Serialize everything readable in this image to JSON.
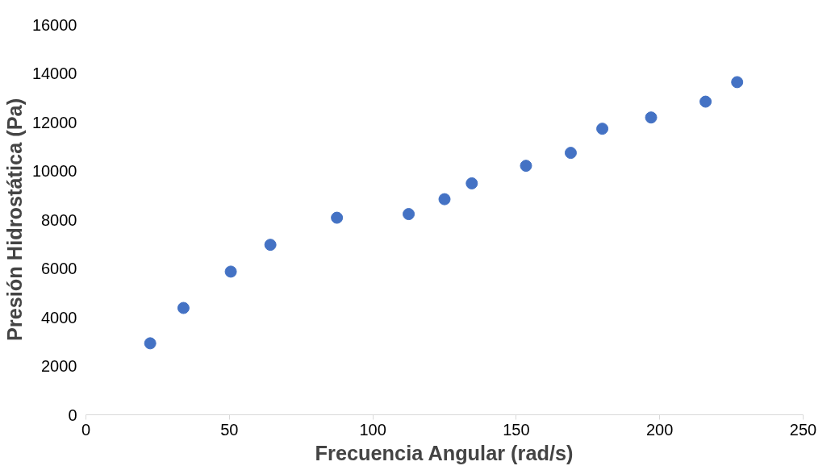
{
  "chart_data": {
    "type": "scatter",
    "xlabel": "Frecuencia Angular (rad/s)",
    "ylabel": "Presión Hidrostática (Pa)",
    "x": [
      22.4,
      34,
      50.5,
      64.3,
      87.5,
      112.5,
      125,
      134.5,
      153.4,
      169,
      180,
      197,
      216,
      227
    ],
    "values": [
      2930,
      4380,
      5870,
      6970,
      8080,
      8230,
      8840,
      9490,
      10210,
      10740,
      11730,
      12190,
      12840,
      13640
    ],
    "color": "#4472c4",
    "marker": "circle",
    "grid": false,
    "xlim": [
      0,
      250
    ],
    "xticks": [
      0,
      50,
      100,
      150,
      200,
      250
    ],
    "ylim": [
      0,
      16000
    ],
    "yticks": [
      0,
      2000,
      4000,
      6000,
      8000,
      10000,
      12000,
      14000,
      16000
    ]
  }
}
